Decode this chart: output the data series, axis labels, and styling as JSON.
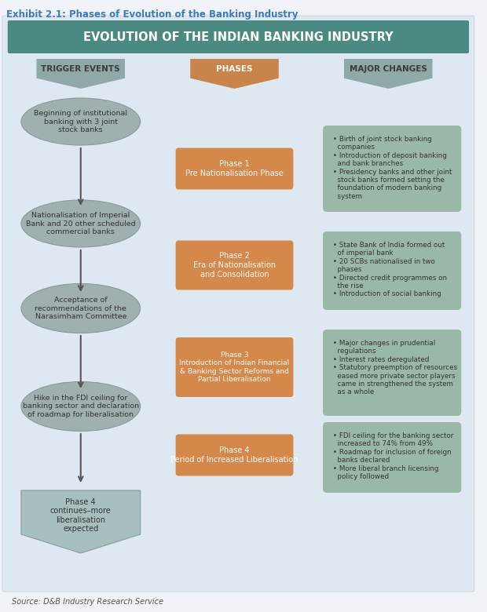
{
  "title_exhibit": "Exhibit 2.1: Phases of Evolution of the Banking Industry",
  "title_main": "EVOLUTION OF THE INDIAN BANKING INDUSTRY",
  "bg_color": "#dde8f0",
  "title_bg": "#4a8a80",
  "title_text_color": "#ffffff",
  "exhibit_color": "#3a7abf",
  "col_headers": [
    "TRIGGER EVENTS",
    "PHASES",
    "MAJOR CHANGES"
  ],
  "col_header_colors": [
    "#8fa8a8",
    "#c8844a",
    "#8fa8a8"
  ],
  "ellipse_color": "#a0b0b0",
  "phase_box_color": "#d4884a",
  "changes_box_color": "#9ab8a8",
  "arrow_color": "#555555",
  "trigger_texts": [
    "Beginning of institutional\nbanking with 3 joint\nstock banks",
    "Nationalisation of Imperial\nBank and 20 other scheduled\ncommercial banks",
    "Acceptance of\nrecommendations of the\nNarasimham Committee",
    "Hike in the FDI ceiling for\nbanking sector and declaration\nof roadmap for liberalisation",
    "Phase 4\ncontinues–more\nliberalisation\nexpected"
  ],
  "phase_texts": [
    "Phase 1\nPre Nationalisation Phase",
    "Phase 2\nEra of Nationalisation\nand Consolidation",
    "Phase 3\nIntroduction of Indian Financial\n& Banking Sector Reforms and\nPartial Liberalisation",
    "Phase 4\nPeriod of Increased Liberalisation"
  ],
  "changes_texts": [
    "• Birth of joint stock banking\n  companies\n• Introduction of deposit banking\n  and bank branches\n• Presidency banks and other joint\n  stock banks formed setting the\n  foundation of modern banking\n  system",
    "• State Bank of India formed out\n  of imperial bank\n• 20 SCBs nationalised in two\n  phases\n• Directed credit programmes on\n  the rise\n• Introduction of social banking",
    "• Major changes in prudential\n  regulations\n• Interest rates deregulated\n• Statutory preemption of resources\n  eased more private sector players\n  came in strengthened the system\n  as a whole",
    "• FDI ceiling for the banking sector\n  increased to 74% from 49%\n• Roadmap for inclusion of foreign\n  banks declared\n• More liberal branch licensing\n  policy followed"
  ],
  "source_text": "Source: D&B Industry Research Service",
  "font_family": "sans-serif"
}
